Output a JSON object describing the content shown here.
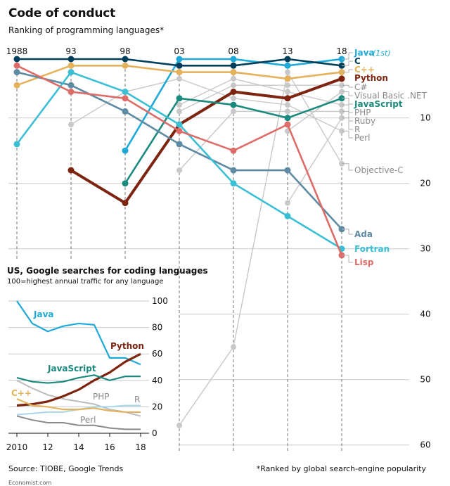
{
  "header": {
    "title": "Code of conduct",
    "subtitle": "Ranking of programming languages*"
  },
  "footer": {
    "source": "Source: TIOBE, Google Trends",
    "footnote": "*Ranked by global search-engine popularity",
    "credit": "Economist.com"
  },
  "chart_data": [
    {
      "type": "line",
      "name": "Ranking of programming languages",
      "x": [
        1988,
        1993,
        1998,
        2003,
        2008,
        2013,
        2018
      ],
      "x_tick_labels": [
        "1988",
        "93",
        "98",
        "03",
        "08",
        "13",
        "18"
      ],
      "y_ticks": [
        10,
        20,
        30,
        40,
        50,
        60
      ],
      "ylim": [
        1,
        60
      ],
      "y_inverted": true,
      "grid": true,
      "highlight_annotation": "(1st)",
      "series": [
        {
          "name": "Java",
          "color": "#1ea9d8",
          "bold": true,
          "values": [
            null,
            null,
            15,
            1,
            1,
            2,
            1
          ]
        },
        {
          "name": "C",
          "color": "#003f5c",
          "bold": true,
          "values": [
            1,
            1,
            1,
            2,
            2,
            1,
            2
          ]
        },
        {
          "name": "C++",
          "color": "#e3b25b",
          "bold": true,
          "values": [
            5,
            2,
            2,
            3,
            3,
            4,
            3
          ]
        },
        {
          "name": "Python",
          "color": "#7c2410",
          "bold": true,
          "values": [
            null,
            18,
            23,
            11,
            6,
            7,
            4
          ]
        },
        {
          "name": "C#",
          "color": "#c8c8c8",
          "bold": false,
          "values": [
            null,
            null,
            null,
            9,
            5,
            5,
            5
          ]
        },
        {
          "name": "Visual Basic .NET",
          "color": "#c8c8c8",
          "bold": false,
          "values": [
            null,
            null,
            null,
            null,
            null,
            12,
            6
          ]
        },
        {
          "name": "JavaScript",
          "color": "#1b8a7e",
          "bold": true,
          "values": [
            null,
            null,
            20,
            7,
            8,
            10,
            7
          ]
        },
        {
          "name": "PHP",
          "color": "#c8c8c8",
          "bold": false,
          "values": [
            null,
            null,
            null,
            8,
            4,
            6,
            8
          ]
        },
        {
          "name": "Ruby",
          "color": "#c8c8c8",
          "bold": false,
          "values": [
            null,
            null,
            null,
            18,
            9,
            9,
            9
          ]
        },
        {
          "name": "R",
          "color": "#c8c8c8",
          "bold": false,
          "values": [
            null,
            null,
            null,
            null,
            null,
            23,
            10
          ]
        },
        {
          "name": "Perl",
          "color": "#c8c8c8",
          "bold": false,
          "values": [
            null,
            11,
            6,
            4,
            7,
            8,
            12
          ]
        },
        {
          "name": "Objective-C",
          "color": "#c8c8c8",
          "bold": false,
          "values": [
            null,
            null,
            null,
            57,
            45,
            3,
            17
          ]
        },
        {
          "name": "Ada",
          "color": "#5e8ba3",
          "bold": true,
          "values": [
            3,
            5,
            9,
            14,
            18,
            18,
            27
          ]
        },
        {
          "name": "Fortran",
          "color": "#3bbfd4",
          "bold": true,
          "values": [
            14,
            3,
            6,
            11,
            20,
            25,
            30
          ]
        },
        {
          "name": "Lisp",
          "color": "#dd6c69",
          "bold": true,
          "values": [
            2,
            6,
            7,
            12,
            15,
            11,
            31
          ]
        }
      ]
    },
    {
      "type": "line",
      "name": "US, Google searches for coding languages",
      "title": "US, Google searches for coding languages",
      "subtitle": "100=highest annual traffic for any language",
      "x": [
        2010,
        2011,
        2012,
        2013,
        2014,
        2015,
        2016,
        2017,
        2018
      ],
      "x_tick_labels": [
        "2010",
        "12",
        "14",
        "16",
        "18"
      ],
      "x_ticks": [
        2010,
        2012,
        2014,
        2016,
        2018
      ],
      "ylim": [
        0,
        100
      ],
      "y_ticks": [
        0,
        20,
        40,
        60,
        80,
        100
      ],
      "grid": true,
      "series": [
        {
          "name": "Java",
          "color": "#1ea9d8",
          "bold": true,
          "values": [
            100,
            83,
            77,
            81,
            83,
            82,
            57,
            57,
            52
          ]
        },
        {
          "name": "Python",
          "color": "#7c2410",
          "bold": true,
          "values": [
            21,
            22,
            24,
            28,
            33,
            40,
            46,
            54,
            60
          ]
        },
        {
          "name": "JavaScript",
          "color": "#1b8a7e",
          "bold": true,
          "values": [
            42,
            39,
            38,
            39,
            42,
            44,
            40,
            43,
            43
          ]
        },
        {
          "name": "C++",
          "color": "#e3b25b",
          "bold": true,
          "values": [
            26,
            21,
            20,
            18,
            18,
            19,
            17,
            16,
            16
          ]
        },
        {
          "name": "PHP",
          "color": "#bcbcbc",
          "bold": false,
          "values": [
            40,
            34,
            29,
            26,
            24,
            22,
            18,
            16,
            13
          ]
        },
        {
          "name": "R",
          "color": "#a8d8ea",
          "bold": false,
          "values": [
            14,
            15,
            16,
            16,
            18,
            20,
            20,
            21,
            21
          ]
        },
        {
          "name": "Perl",
          "color": "#8a8a8a",
          "bold": false,
          "values": [
            13,
            10,
            8,
            8,
            6,
            6,
            4,
            3,
            3
          ]
        }
      ]
    }
  ]
}
